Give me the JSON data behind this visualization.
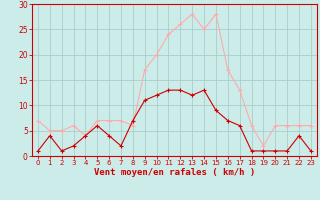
{
  "hours": [
    0,
    1,
    2,
    3,
    4,
    5,
    6,
    7,
    8,
    9,
    10,
    11,
    12,
    13,
    14,
    15,
    16,
    17,
    18,
    19,
    20,
    21,
    22,
    23
  ],
  "wind_avg": [
    1,
    4,
    1,
    2,
    4,
    6,
    4,
    2,
    7,
    11,
    12,
    13,
    13,
    12,
    13,
    9,
    7,
    6,
    1,
    1,
    1,
    1,
    4,
    1
  ],
  "wind_gust": [
    7,
    5,
    5,
    6,
    4,
    7,
    7,
    7,
    6,
    17,
    20,
    24,
    26,
    28,
    25,
    28,
    17,
    13,
    6,
    2,
    6,
    6,
    6,
    6
  ],
  "avg_color": "#cc0000",
  "gust_color": "#ffaaaa",
  "bg_color": "#ccecea",
  "grid_color": "#aacccc",
  "xlabel": "Vent moyen/en rafales ( km/h )",
  "xlabel_color": "#cc0000",
  "tick_color": "#cc0000",
  "ylim": [
    0,
    30
  ],
  "yticks": [
    0,
    5,
    10,
    15,
    20,
    25,
    30
  ],
  "marker_size": 3,
  "linewidth": 0.8,
  "spine_color": "#cc0000"
}
